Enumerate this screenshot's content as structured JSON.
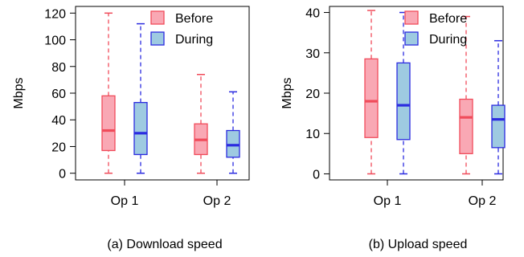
{
  "chart_data": [
    {
      "type": "box",
      "caption": "(a) Download speed",
      "ylabel": "Mbps",
      "ylim": [
        -5,
        125
      ],
      "yticks": [
        0,
        20,
        40,
        60,
        80,
        100,
        120
      ],
      "categories": [
        "Op 1",
        "Op 2"
      ],
      "legend": {
        "placement": "top-right",
        "entries": [
          "Before",
          "During"
        ]
      },
      "series": [
        {
          "name": "Before",
          "color": "#f04b5a",
          "fill": "#f9a8b4",
          "boxes": [
            {
              "min": 0,
              "q1": 17,
              "median": 32,
              "q3": 58,
              "max": 120
            },
            {
              "min": 0,
              "q1": 14,
              "median": 25,
              "q3": 37,
              "max": 74
            }
          ]
        },
        {
          "name": "During",
          "color": "#2b2be0",
          "fill": "#9ecae1",
          "boxes": [
            {
              "min": 0,
              "q1": 14,
              "median": 30,
              "q3": 53,
              "max": 112
            },
            {
              "min": 0,
              "q1": 12,
              "median": 21,
              "q3": 32,
              "max": 61
            }
          ]
        }
      ]
    },
    {
      "type": "box",
      "caption": "(b) Upload speed",
      "ylabel": "Mbps",
      "ylim": [
        -1.5,
        41.5
      ],
      "yticks": [
        0,
        10,
        20,
        30,
        40
      ],
      "categories": [
        "Op 1",
        "Op 2"
      ],
      "legend": {
        "placement": "top-right",
        "entries": [
          "Before",
          "During"
        ]
      },
      "series": [
        {
          "name": "Before",
          "color": "#f04b5a",
          "fill": "#f9a8b4",
          "boxes": [
            {
              "min": 0,
              "q1": 9,
              "median": 18,
              "q3": 28.5,
              "max": 40.5
            },
            {
              "min": 0,
              "q1": 5,
              "median": 14,
              "q3": 18.5,
              "max": 39
            }
          ]
        },
        {
          "name": "During",
          "color": "#2b2be0",
          "fill": "#9ecae1",
          "boxes": [
            {
              "min": 0,
              "q1": 8.5,
              "median": 17,
              "q3": 27.5,
              "max": 40
            },
            {
              "min": 0,
              "q1": 6.5,
              "median": 13.5,
              "q3": 17,
              "max": 33
            }
          ]
        }
      ]
    }
  ]
}
